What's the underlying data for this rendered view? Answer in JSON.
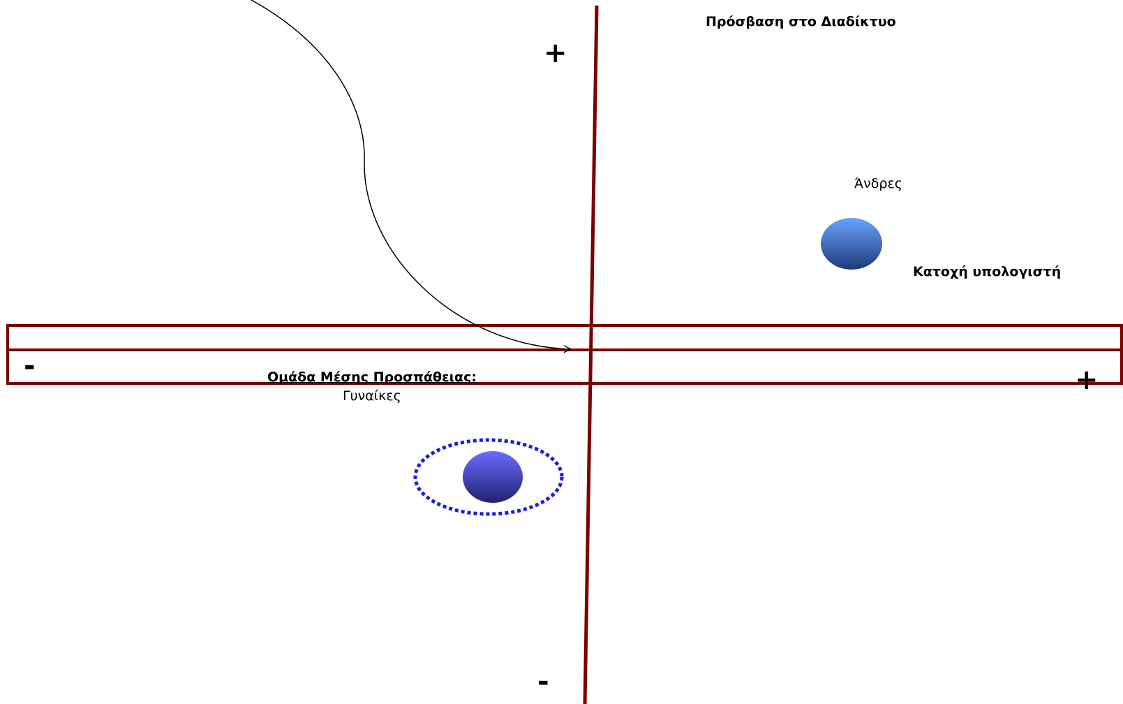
{
  "labels": {
    "y_axis_title": "Πρόσβαση στο Διαδίκτυο",
    "x_axis_title": "Κατοχή υπολογιστή",
    "men": "Άνδρες",
    "target_group": "Ομάδα Μέσης Προσπάθειας:",
    "women": "Γυναίκες",
    "y_plus": "+",
    "y_minus": "-",
    "x_plus": "+",
    "x_minus": "-"
  },
  "colors": {
    "axis": "#7b0000",
    "men_bubble_top": "#6aa2ff",
    "men_bubble_bottom": "#1e3a78",
    "women_bubble_top": "#6b6cff",
    "women_bubble_bottom": "#20226e",
    "dotted_ring": "#1a1ae6",
    "arrow": "#000000"
  }
}
